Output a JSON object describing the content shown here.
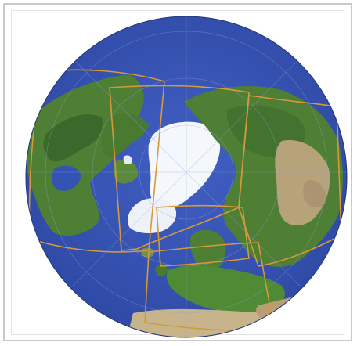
{
  "map": {
    "projection": "orthographic-north-polar",
    "colors": {
      "ocean": "#3553b3",
      "land_green": "#4f7f34",
      "land_dark": "#2f5a26",
      "land_desert": "#b7a37a",
      "ice": "#f4f7fb",
      "frame": "#c9c9c9",
      "grid_boxes": "#d49a3a",
      "graticule": "#8da0d8"
    },
    "overlay": "rectangular-domain-boxes"
  }
}
